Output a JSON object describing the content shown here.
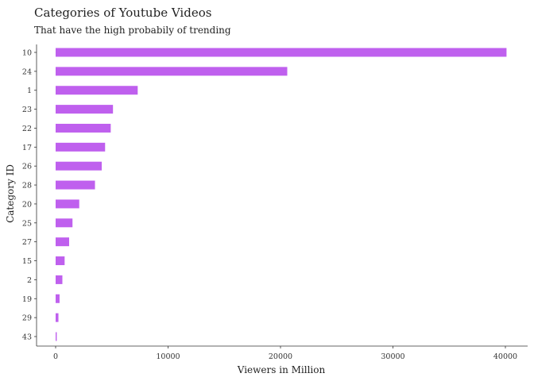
{
  "chart_data": {
    "type": "bar",
    "orientation": "horizontal",
    "title": "Categories of Youtube Videos",
    "subtitle": "That have the high probabily of trending",
    "xlabel": "Viewers in Million",
    "ylabel": "Category ID",
    "categories": [
      "10",
      "24",
      "1",
      "23",
      "22",
      "17",
      "26",
      "28",
      "20",
      "25",
      "27",
      "15",
      "2",
      "19",
      "29",
      "43"
    ],
    "values": [
      40100,
      20600,
      7300,
      5100,
      4900,
      4400,
      4100,
      3500,
      2100,
      1500,
      1200,
      800,
      600,
      350,
      250,
      100
    ],
    "xlim": [
      0,
      40000
    ],
    "xticks": [
      0,
      10000,
      20000,
      30000,
      40000
    ],
    "xtick_labels": [
      "0",
      "10000",
      "20000",
      "30000",
      "40000"
    ],
    "bar_color": "#bf60ee",
    "grid": false,
    "legend": "none"
  }
}
